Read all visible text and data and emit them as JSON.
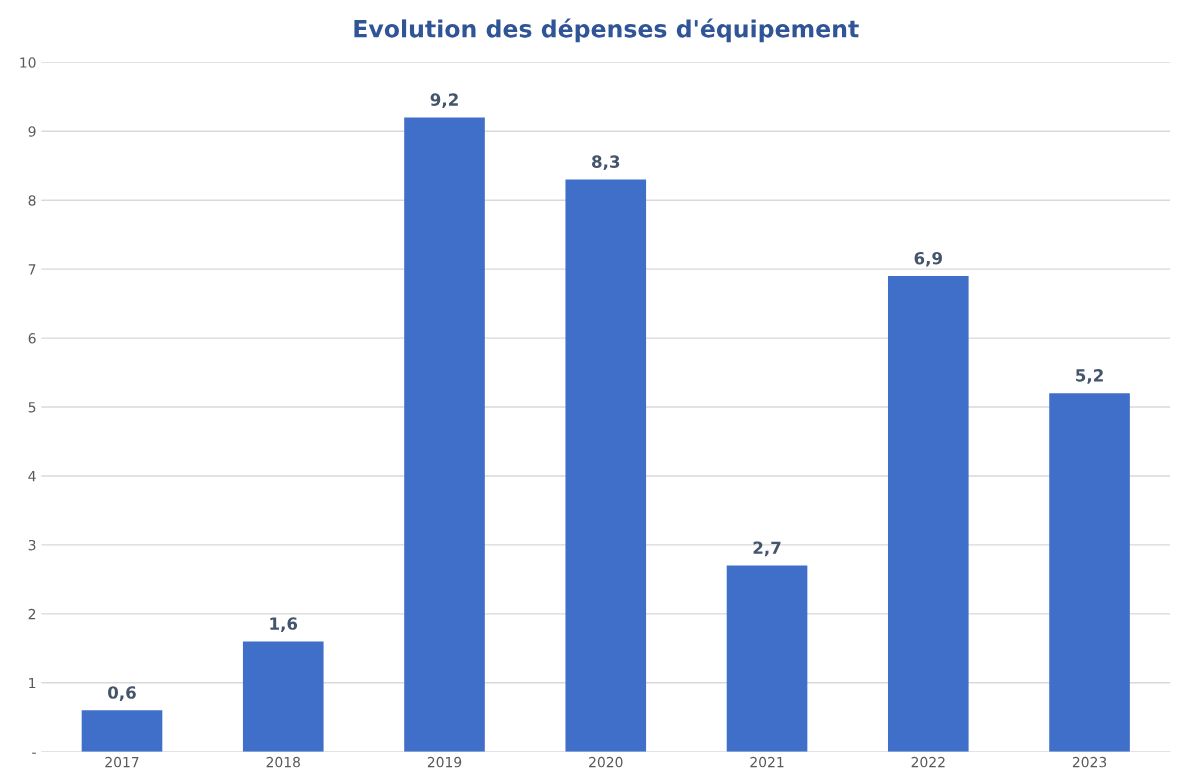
{
  "chart_data": {
    "type": "bar",
    "title": "Evolution des dépenses d'équipement",
    "categories": [
      "2017",
      "2018",
      "2019",
      "2020",
      "2021",
      "2022",
      "2023"
    ],
    "values": [
      0.6,
      1.6,
      9.2,
      8.3,
      2.7,
      6.9,
      5.2
    ],
    "value_labels": [
      "0,6",
      "1,6",
      "9,2",
      "8,3",
      "2,7",
      "6,9",
      "5,2"
    ],
    "color": "#3f6fc9",
    "ylim": [
      0,
      10
    ],
    "yticks": [
      {
        "value": 0,
        "label": "-"
      },
      1,
      2,
      3,
      4,
      5,
      6,
      7,
      8,
      9,
      10
    ],
    "grid": "y"
  }
}
